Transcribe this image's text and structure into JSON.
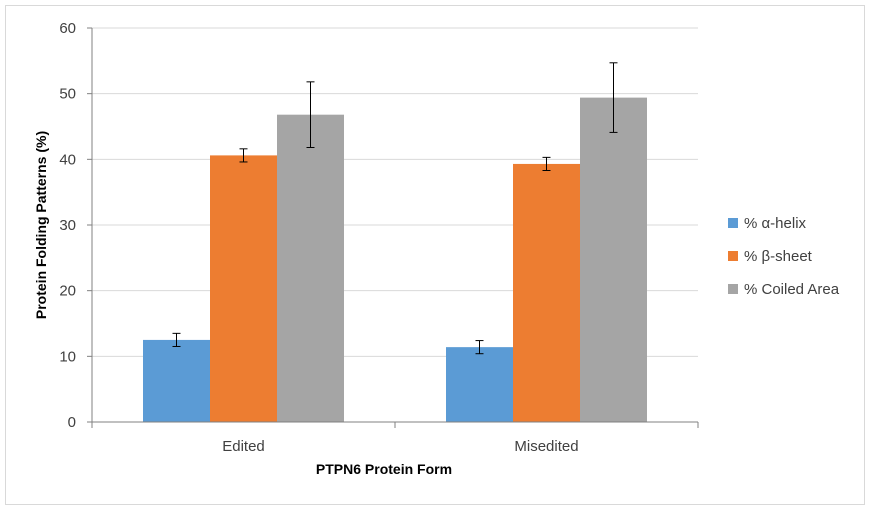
{
  "chart_data": {
    "type": "bar",
    "categories": [
      "Edited",
      "Misedited"
    ],
    "series": [
      {
        "name": "% α-helix",
        "values": [
          12.5,
          11.4
        ],
        "errors": [
          1.0,
          1.0
        ],
        "color": "#5b9bd5"
      },
      {
        "name": "% β-sheet",
        "values": [
          40.6,
          39.3
        ],
        "errors": [
          1.0,
          1.0
        ],
        "color": "#ed7d31"
      },
      {
        "name": "% Coiled Area",
        "values": [
          46.8,
          49.4
        ],
        "errors": [
          5.0,
          5.3
        ],
        "color": "#a5a5a5"
      }
    ],
    "xlabel": "PTPN6 Protein Form",
    "ylabel": "Protein Folding Patterns (%)",
    "ylim": [
      0,
      60
    ],
    "yticks": [
      0,
      10,
      20,
      30,
      40,
      50,
      60
    ],
    "grid": true,
    "legend": "right"
  }
}
